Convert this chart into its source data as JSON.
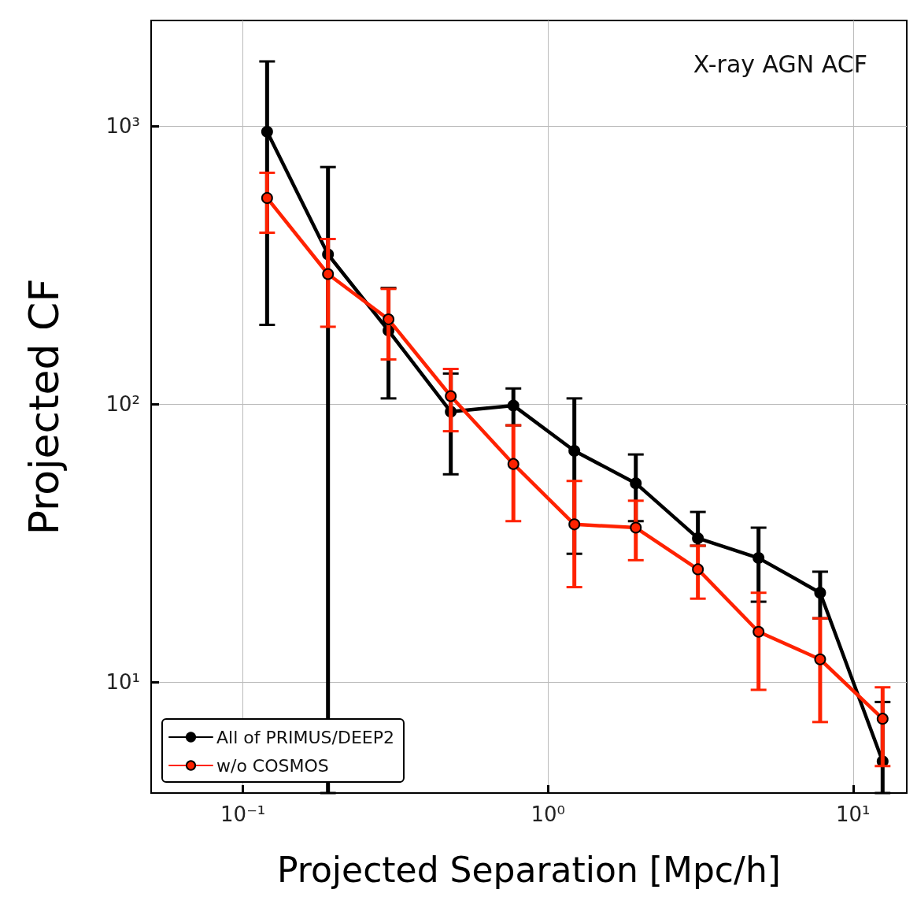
{
  "chart_data": {
    "type": "line",
    "xlabel": "Projected Separation [Mpc/h]",
    "ylabel": "Projected CF",
    "annotations": [
      "X-ray AGN ACF"
    ],
    "x": [
      0.12,
      0.19,
      0.3,
      0.48,
      0.77,
      1.22,
      1.94,
      3.1,
      4.9,
      7.8,
      12.5
    ],
    "series": [
      {
        "name": "All of PRIMUS/DEEP2",
        "color": "#000000",
        "marker": "circle",
        "values": [
          955,
          346,
          184,
          94,
          99,
          68,
          52,
          33,
          28,
          21,
          5.2
        ],
        "errors": [
          [
            193,
            1710
          ],
          [
            4,
            713
          ],
          [
            105,
            262
          ],
          [
            56,
            129
          ],
          [
            84,
            114
          ],
          [
            29,
            105
          ],
          [
            38,
            66
          ],
          [
            31,
            41
          ],
          [
            19.5,
            36
          ],
          [
            17,
            25
          ],
          [
            4,
            8.5
          ]
        ]
      },
      {
        "name": "w/o COSMOS",
        "color": "#ff2200",
        "marker": "circle",
        "values": [
          552,
          294,
          202,
          107,
          61,
          37,
          36,
          25.5,
          15.2,
          12.1,
          7.4
        ],
        "errors": [
          [
            414,
            680
          ],
          [
            190,
            393
          ],
          [
            145,
            260
          ],
          [
            80,
            134
          ],
          [
            38,
            84
          ],
          [
            22,
            53
          ],
          [
            27.5,
            45
          ],
          [
            20,
            31
          ],
          [
            9.4,
            21
          ],
          [
            7.2,
            17
          ],
          [
            5.0,
            9.6
          ]
        ]
      }
    ],
    "log": "xy",
    "xlim": [
      0.05,
      15
    ],
    "ylim": [
      4,
      2400
    ],
    "xticks": [
      {
        "value": 0.1,
        "label": "10⁻¹"
      },
      {
        "value": 1,
        "label": "10⁰"
      },
      {
        "value": 10,
        "label": "10¹"
      }
    ],
    "yticks": [
      {
        "value": 10,
        "label": "10¹"
      },
      {
        "value": 100,
        "label": "10²"
      },
      {
        "value": 1000,
        "label": "10³"
      }
    ],
    "grid": true,
    "legend": "bottom left",
    "line_style": "solid"
  }
}
